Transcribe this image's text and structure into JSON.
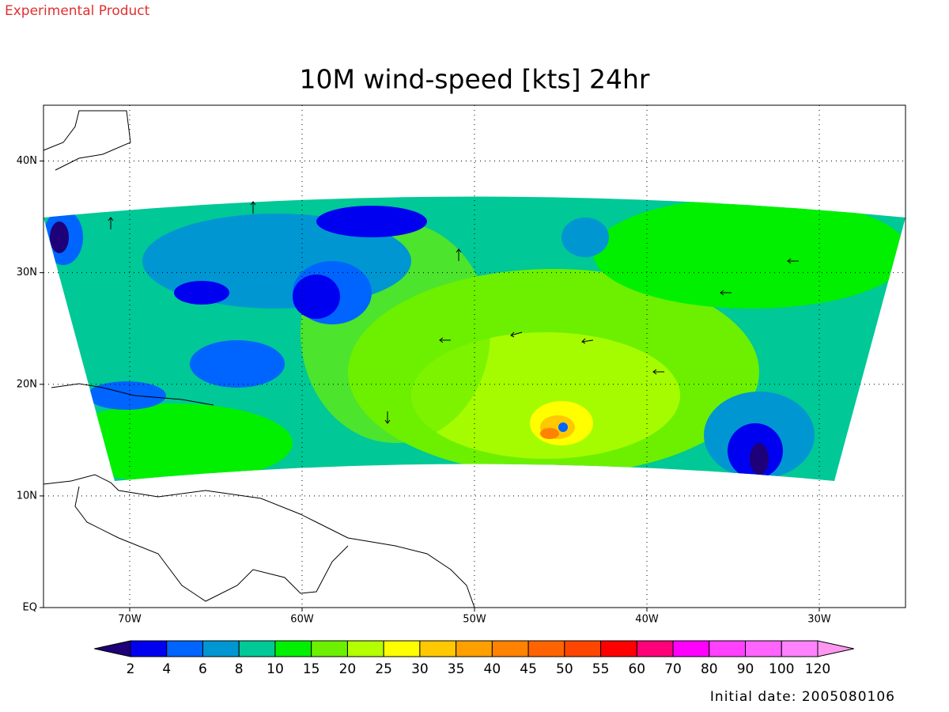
{
  "header": {
    "note": "Experimental Product"
  },
  "title": "10M wind-speed [kts] 24hr",
  "map": {
    "lonlim": [
      -75,
      -25
    ],
    "latlim": [
      0,
      45
    ],
    "lat_ticks": [
      {
        "value": 0,
        "label": "EQ"
      },
      {
        "value": 10,
        "label": "10N"
      },
      {
        "value": 20,
        "label": "20N"
      },
      {
        "value": 30,
        "label": "30N"
      },
      {
        "value": 40,
        "label": "40N"
      }
    ],
    "lon_ticks": [
      {
        "value": -70,
        "label": "70W"
      },
      {
        "value": -60,
        "label": "60W"
      },
      {
        "value": -50,
        "label": "50W"
      },
      {
        "value": -40,
        "label": "40W"
      },
      {
        "value": -30,
        "label": "30W"
      }
    ],
    "grid": true
  },
  "colorbar": {
    "levels": [
      2,
      4,
      6,
      8,
      10,
      15,
      20,
      25,
      30,
      35,
      40,
      45,
      50,
      55,
      60,
      70,
      80,
      90,
      100,
      120
    ],
    "colors": [
      "#1e0078",
      "#0000f0",
      "#0064ff",
      "#0096d2",
      "#00c896",
      "#00f000",
      "#6cf000",
      "#b4ff00",
      "#ffff00",
      "#ffc800",
      "#ffa000",
      "#ff8200",
      "#ff6400",
      "#ff4600",
      "#ff0000",
      "#ff0078",
      "#ff00ff",
      "#ff40ff",
      "#ff64ff",
      "#ff82ff",
      "#ff96f0"
    ]
  },
  "footer": "Initial date: 2005080106"
}
